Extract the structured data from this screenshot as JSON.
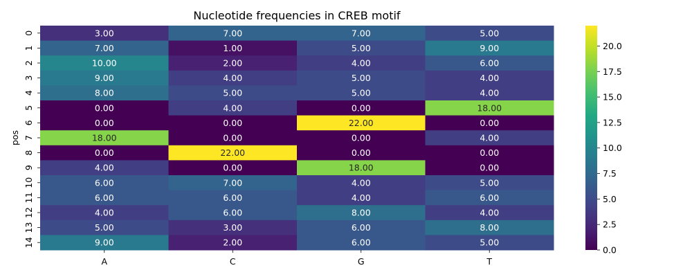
{
  "chart_data": {
    "type": "heatmap",
    "title": "Nucleotide frequencies in CREB motif",
    "xlabel": "",
    "ylabel": "pos",
    "x_categories": [
      "A",
      "C",
      "G",
      "T"
    ],
    "y_categories": [
      "0",
      "1",
      "2",
      "3",
      "4",
      "5",
      "6",
      "7",
      "8",
      "9",
      "10",
      "11",
      "12",
      "13",
      "14"
    ],
    "values": [
      [
        3,
        7,
        7,
        5
      ],
      [
        7,
        1,
        5,
        9
      ],
      [
        10,
        2,
        4,
        6
      ],
      [
        9,
        4,
        5,
        4
      ],
      [
        8,
        5,
        5,
        4
      ],
      [
        0,
        4,
        0,
        18
      ],
      [
        0,
        0,
        22,
        0
      ],
      [
        18,
        0,
        0,
        4
      ],
      [
        0,
        22,
        0,
        0
      ],
      [
        4,
        0,
        18,
        0
      ],
      [
        6,
        7,
        4,
        5
      ],
      [
        6,
        6,
        4,
        6
      ],
      [
        4,
        6,
        8,
        4
      ],
      [
        5,
        3,
        6,
        8
      ],
      [
        9,
        2,
        6,
        5
      ]
    ],
    "value_format": "2 decimals",
    "colormap": "viridis",
    "vmin": 0,
    "vmax": 22,
    "colorbar_ticks": [
      "0.0",
      "2.5",
      "5.0",
      "7.5",
      "10.0",
      "12.5",
      "15.0",
      "17.5",
      "20.0"
    ],
    "grid": false
  }
}
